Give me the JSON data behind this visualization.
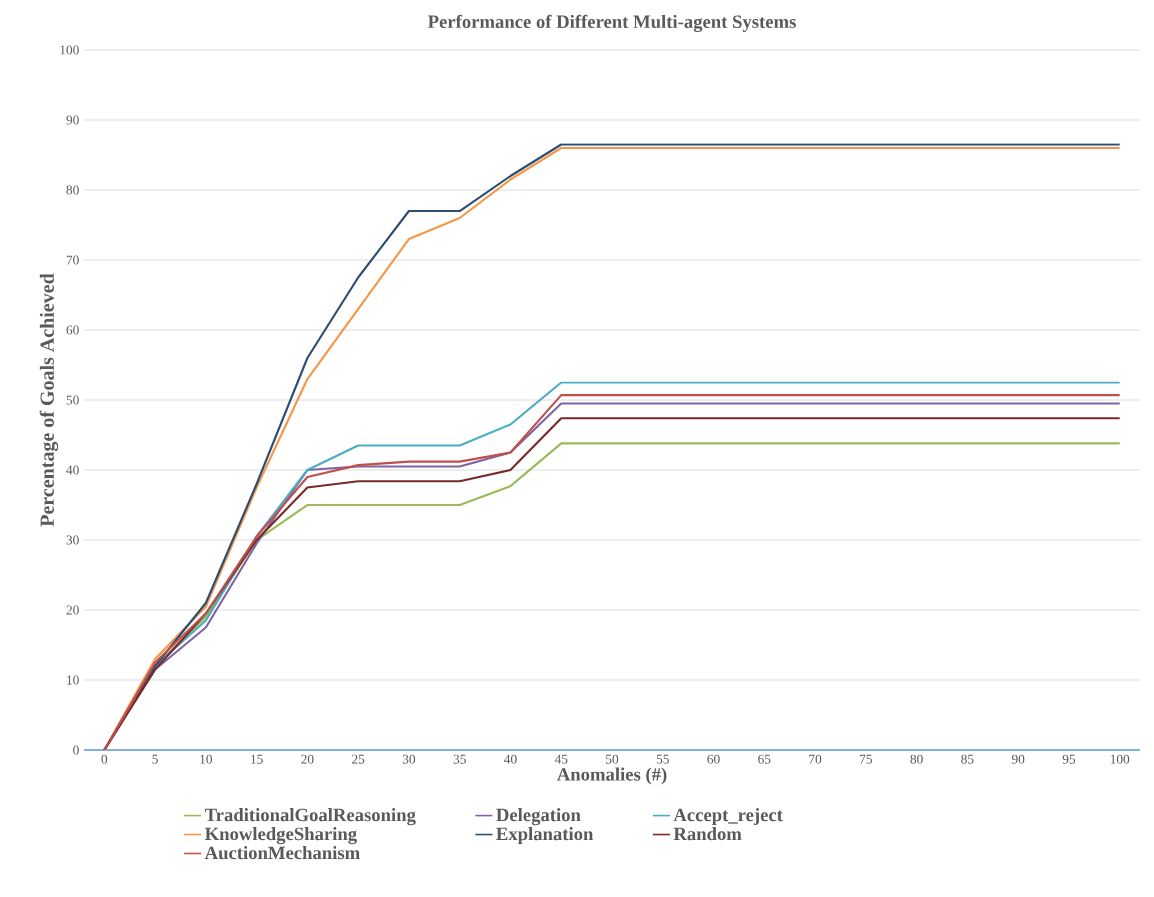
{
  "chart_data": {
    "type": "line",
    "title": "Performance of Different Multi-agent Systems",
    "xlabel": "Anomalies (#)",
    "ylabel": "Percentage of Goals Achieved",
    "categories": [
      "0",
      "5",
      "10",
      "15",
      "20",
      "25",
      "30",
      "35",
      "40",
      "45",
      "50",
      "55",
      "60",
      "65",
      "70",
      "75",
      "80",
      "85",
      "90",
      "95",
      "100"
    ],
    "series": [
      {
        "name": "TraditionalGoalReasoning",
        "color": "#9bbb59",
        "values": [
          0,
          12,
          19,
          30,
          35,
          35,
          35,
          35,
          37.7,
          43.8,
          43.8,
          43.8,
          43.8,
          43.8,
          43.8,
          43.8,
          43.8,
          43.8,
          43.8,
          43.8,
          43.8
        ]
      },
      {
        "name": "Delegation",
        "color": "#8064a2",
        "values": [
          0,
          11.5,
          17.5,
          29.5,
          40,
          40.5,
          40.5,
          40.5,
          42.5,
          49.5,
          49.5,
          49.5,
          49.5,
          49.5,
          49.5,
          49.5,
          49.5,
          49.5,
          49.5,
          49.5,
          49.5
        ]
      },
      {
        "name": "Accept_reject",
        "color": "#4bacc6",
        "values": [
          0,
          12,
          18.5,
          30.5,
          40,
          43.5,
          43.5,
          43.5,
          46.5,
          52.5,
          52.5,
          52.5,
          52.5,
          52.5,
          52.5,
          52.5,
          52.5,
          52.5,
          52.5,
          52.5,
          52.5
        ]
      },
      {
        "name": "KnowledgeSharing",
        "color": "#f79646",
        "values": [
          0,
          13,
          20.5,
          37.5,
          53,
          63,
          73,
          76,
          81.5,
          86,
          86,
          86,
          86,
          86,
          86,
          86,
          86,
          86,
          86,
          86,
          86
        ]
      },
      {
        "name": "Explanation",
        "color": "#2c4d75",
        "values": [
          0,
          12,
          21,
          38,
          56,
          67.5,
          77,
          77,
          82,
          86.5,
          86.5,
          86.5,
          86.5,
          86.5,
          86.5,
          86.5,
          86.5,
          86.5,
          86.5,
          86.5,
          86.5
        ]
      },
      {
        "name": "Random",
        "color": "#772c2a",
        "values": [
          0,
          11.5,
          19.5,
          30,
          37.5,
          38.4,
          38.4,
          38.4,
          40,
          47.4,
          47.4,
          47.4,
          47.4,
          47.4,
          47.4,
          47.4,
          47.4,
          47.4,
          47.4,
          47.4,
          47.4
        ]
      },
      {
        "name": "AuctionMechanism",
        "color": "#c0504d",
        "values": [
          0,
          12.5,
          19.5,
          30.5,
          39,
          40.7,
          41.2,
          41.2,
          42.5,
          50.7,
          50.7,
          50.7,
          50.7,
          50.7,
          50.7,
          50.7,
          50.7,
          50.7,
          50.7,
          50.7,
          50.7
        ]
      }
    ],
    "ylim": [
      0,
      100
    ],
    "yticks": [
      0,
      10,
      20,
      30,
      40,
      50,
      60,
      70,
      80,
      90,
      100
    ],
    "grid": "y",
    "legend": "bottom",
    "marker": "none",
    "line_style": "solid"
  }
}
